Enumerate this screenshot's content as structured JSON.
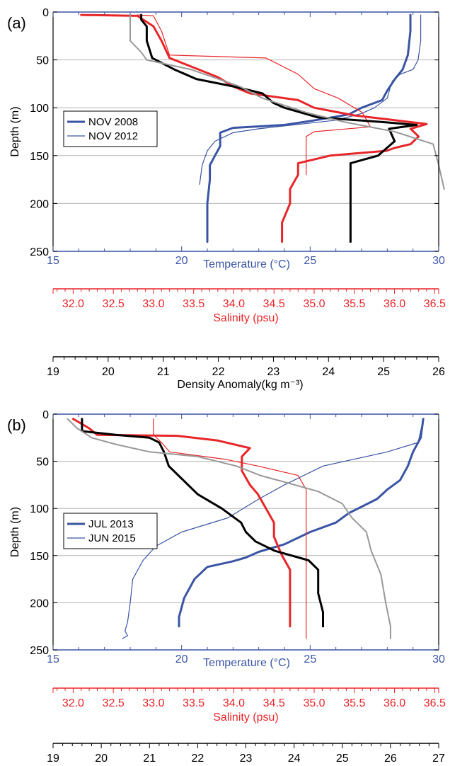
{
  "colors": {
    "temperature": "#3a54a4",
    "salinity": "#e8262a",
    "density": "#000000",
    "density_alt": "#999999",
    "grid": "#b4b4b4"
  },
  "chart_data": [
    {
      "type": "line",
      "panel_label": "(a)",
      "ylabel": "Depth (m)",
      "ylim": [
        250,
        0
      ],
      "yticks": [
        0,
        50,
        100,
        150,
        200,
        250
      ],
      "grid": true,
      "legend_position": "center-left",
      "legend": [
        {
          "label": "NOV 2008",
          "style": "thick"
        },
        {
          "label": "NOV 2012",
          "style": "thin"
        }
      ],
      "axes": {
        "temperature": {
          "label": "Temperature (°C)",
          "range": [
            15,
            30
          ],
          "ticks": [
            15,
            20,
            25,
            30
          ]
        },
        "salinity": {
          "label": "Salinity (psu)",
          "range": [
            31.75,
            36.55
          ],
          "ticks": [
            "32.0",
            "32.5",
            "33.0",
            "33.5",
            "34.0",
            "34.5",
            "35.0",
            "35.5",
            "36.0",
            "36.5"
          ]
        },
        "density": {
          "label": "Density Anomaly(kg m⁻³)",
          "range": [
            19,
            26
          ],
          "ticks": [
            19,
            20,
            21,
            22,
            23,
            24,
            25,
            26
          ]
        }
      },
      "series": [
        {
          "name": "NOV 2008",
          "variable": "temperature",
          "width": 3,
          "points": [
            [
              28.9,
              3
            ],
            [
              28.9,
              20
            ],
            [
              28.8,
              45
            ],
            [
              28.6,
              60
            ],
            [
              28.3,
              70
            ],
            [
              28.0,
              82
            ],
            [
              27.8,
              92
            ],
            [
              27.0,
              100
            ],
            [
              26.5,
              107
            ],
            [
              25.2,
              113
            ],
            [
              24.0,
              118
            ],
            [
              22.0,
              121
            ],
            [
              21.5,
              126
            ],
            [
              21.5,
              140
            ],
            [
              21.3,
              150
            ],
            [
              21.1,
              160
            ],
            [
              21.1,
              175
            ],
            [
              21.0,
              200
            ],
            [
              21.0,
              240
            ]
          ]
        },
        {
          "name": "NOV 2012",
          "variable": "temperature",
          "width": 1.2,
          "points": [
            [
              29.3,
              3
            ],
            [
              29.3,
              30
            ],
            [
              29.2,
              50
            ],
            [
              29.0,
              60
            ],
            [
              28.5,
              65
            ],
            [
              28.2,
              72
            ],
            [
              28.1,
              80
            ],
            [
              28.0,
              90
            ],
            [
              27.5,
              100
            ],
            [
              27.0,
              106
            ],
            [
              26.0,
              113
            ],
            [
              23.0,
              122
            ],
            [
              22.0,
              126
            ],
            [
              21.3,
              135
            ],
            [
              21.0,
              145
            ],
            [
              20.8,
              160
            ],
            [
              20.7,
              180
            ]
          ]
        },
        {
          "name": "NOV 2008",
          "variable": "salinity",
          "width": 3,
          "points": [
            [
              32.1,
              3
            ],
            [
              32.8,
              4
            ],
            [
              33.0,
              15
            ],
            [
              33.1,
              30
            ],
            [
              33.2,
              48
            ],
            [
              33.5,
              58
            ],
            [
              33.8,
              68
            ],
            [
              34.0,
              78
            ],
            [
              34.2,
              85
            ],
            [
              34.8,
              92
            ],
            [
              35.0,
              100
            ],
            [
              35.5,
              108
            ],
            [
              35.9,
              112
            ],
            [
              36.4,
              117
            ],
            [
              36.2,
              122
            ],
            [
              36.3,
              130
            ],
            [
              36.2,
              138
            ],
            [
              36.0,
              142
            ],
            [
              35.9,
              145
            ],
            [
              35.2,
              150
            ],
            [
              34.8,
              158
            ],
            [
              34.8,
              170
            ],
            [
              34.7,
              185
            ],
            [
              34.7,
              200
            ],
            [
              34.6,
              220
            ],
            [
              34.6,
              240
            ]
          ]
        },
        {
          "name": "NOV 2012",
          "variable": "salinity",
          "width": 1.2,
          "points": [
            [
              32.8,
              3
            ],
            [
              33.0,
              4
            ],
            [
              33.1,
              20
            ],
            [
              33.2,
              45
            ],
            [
              34.4,
              48
            ],
            [
              34.8,
              65
            ],
            [
              35.0,
              80
            ],
            [
              35.3,
              90
            ],
            [
              35.6,
              105
            ],
            [
              35.7,
              120
            ],
            [
              35.0,
              125
            ],
            [
              34.9,
              130
            ],
            [
              34.9,
              150
            ],
            [
              34.9,
              170
            ]
          ]
        },
        {
          "name": "NOV 2008",
          "variable": "density",
          "width": 3,
          "points": [
            [
              20.6,
              3
            ],
            [
              20.6,
              8
            ],
            [
              20.7,
              15
            ],
            [
              20.7,
              30
            ],
            [
              20.8,
              48
            ],
            [
              21.2,
              60
            ],
            [
              21.6,
              70
            ],
            [
              22.3,
              78
            ],
            [
              22.8,
              85
            ],
            [
              23.0,
              95
            ],
            [
              23.2,
              100
            ],
            [
              23.8,
              110
            ],
            [
              25.0,
              115
            ],
            [
              25.6,
              118
            ],
            [
              25.1,
              122
            ],
            [
              25.2,
              135
            ],
            [
              25.0,
              145
            ],
            [
              24.9,
              150
            ],
            [
              24.4,
              158
            ],
            [
              24.4,
              170
            ],
            [
              24.4,
              190
            ],
            [
              24.4,
              210
            ],
            [
              24.4,
              240
            ]
          ]
        },
        {
          "name": "NOV 2012",
          "variable": "density",
          "width": 2,
          "points": [
            [
              20.4,
              3
            ],
            [
              20.4,
              15
            ],
            [
              20.4,
              30
            ],
            [
              20.6,
              42
            ],
            [
              20.7,
              50
            ],
            [
              21.5,
              60
            ],
            [
              22.0,
              70
            ],
            [
              22.4,
              78
            ],
            [
              22.8,
              90
            ],
            [
              23.6,
              105
            ],
            [
              24.3,
              115
            ],
            [
              25.2,
              125
            ],
            [
              25.9,
              138
            ],
            [
              26.0,
              160
            ],
            [
              26.1,
              185
            ]
          ]
        }
      ]
    },
    {
      "type": "line",
      "panel_label": "(b)",
      "ylabel": "Depth (m)",
      "ylim": [
        250,
        0
      ],
      "yticks": [
        0,
        50,
        100,
        150,
        200,
        250
      ],
      "grid": true,
      "legend_position": "center-left",
      "legend": [
        {
          "label": "JUL 2013",
          "style": "thick"
        },
        {
          "label": "JUN 2015",
          "style": "thin"
        }
      ],
      "axes": {
        "temperature": {
          "label": "Temperature (°C)",
          "range": [
            15,
            30
          ],
          "ticks": [
            15,
            20,
            25,
            30
          ]
        },
        "salinity": {
          "label": "Salinity (psu)",
          "range": [
            31.75,
            36.55
          ],
          "ticks": [
            "32.0",
            "32.5",
            "33.0",
            "33.5",
            "34.0",
            "34.5",
            "35.0",
            "35.5",
            "36.0",
            "36.5"
          ]
        },
        "density": {
          "label": "Density Anomaly(kg m⁻³)",
          "range": [
            19,
            27
          ],
          "ticks": [
            19,
            20,
            21,
            22,
            23,
            24,
            25,
            26,
            27
          ]
        }
      },
      "series": [
        {
          "name": "JUL 2013",
          "variable": "temperature",
          "width": 3,
          "points": [
            [
              29.4,
              5
            ],
            [
              29.3,
              25
            ],
            [
              29.0,
              40
            ],
            [
              28.8,
              55
            ],
            [
              28.5,
              70
            ],
            [
              28.0,
              80
            ],
            [
              27.6,
              90
            ],
            [
              26.5,
              105
            ],
            [
              26.0,
              115
            ],
            [
              25.0,
              125
            ],
            [
              24.0,
              138
            ],
            [
              23.0,
              146
            ],
            [
              22.5,
              152
            ],
            [
              22.0,
              156
            ],
            [
              21.0,
              162
            ],
            [
              20.5,
              175
            ],
            [
              20.1,
              195
            ],
            [
              19.9,
              215
            ],
            [
              19.9,
              225
            ]
          ]
        },
        {
          "name": "JUN 2015",
          "variable": "temperature",
          "width": 1.2,
          "points": [
            [
              29.4,
              5
            ],
            [
              29.2,
              30
            ],
            [
              28.0,
              40
            ],
            [
              25.5,
              55
            ],
            [
              24.0,
              75
            ],
            [
              23.0,
              90
            ],
            [
              21.8,
              110
            ],
            [
              20.0,
              125
            ],
            [
              19.0,
              140
            ],
            [
              18.5,
              155
            ],
            [
              18.1,
              175
            ],
            [
              18.0,
              200
            ],
            [
              17.9,
              220
            ],
            [
              17.8,
              230
            ],
            [
              17.9,
              235
            ],
            [
              17.7,
              238
            ]
          ]
        },
        {
          "name": "JUL 2013",
          "variable": "salinity",
          "width": 3,
          "points": [
            [
              32.0,
              5
            ],
            [
              32.2,
              15
            ],
            [
              32.3,
              22
            ],
            [
              33.3,
              23
            ],
            [
              33.8,
              28
            ],
            [
              34.2,
              36
            ],
            [
              34.1,
              45
            ],
            [
              34.1,
              60
            ],
            [
              34.2,
              75
            ],
            [
              34.3,
              85
            ],
            [
              34.4,
              100
            ],
            [
              34.5,
              115
            ],
            [
              34.5,
              130
            ],
            [
              34.6,
              150
            ],
            [
              34.7,
              165
            ],
            [
              34.7,
              190
            ],
            [
              34.7,
              215
            ],
            [
              34.7,
              225
            ]
          ]
        },
        {
          "name": "JUN 2015",
          "variable": "salinity",
          "width": 1.2,
          "points": [
            [
              33.0,
              5
            ],
            [
              33.0,
              22
            ],
            [
              33.1,
              30
            ],
            [
              33.2,
              40
            ],
            [
              33.9,
              48
            ],
            [
              34.3,
              55
            ],
            [
              34.8,
              65
            ],
            [
              34.9,
              80
            ],
            [
              34.9,
              100
            ],
            [
              34.9,
              130
            ],
            [
              34.9,
              170
            ],
            [
              34.9,
              210
            ],
            [
              34.9,
              238
            ]
          ]
        },
        {
          "name": "JUL 2013",
          "variable": "density",
          "width": 3,
          "points": [
            [
              19.6,
              5
            ],
            [
              19.6,
              18
            ],
            [
              20.3,
              22
            ],
            [
              21.0,
              25
            ],
            [
              21.2,
              30
            ],
            [
              21.3,
              40
            ],
            [
              21.4,
              55
            ],
            [
              21.7,
              70
            ],
            [
              22.0,
              85
            ],
            [
              22.5,
              100
            ],
            [
              22.9,
              115
            ],
            [
              23.0,
              125
            ],
            [
              23.2,
              135
            ],
            [
              23.6,
              145
            ],
            [
              24.3,
              155
            ],
            [
              24.5,
              165
            ],
            [
              24.5,
              190
            ],
            [
              24.6,
              210
            ],
            [
              24.6,
              225
            ]
          ]
        },
        {
          "name": "JUN 2015",
          "variable": "density",
          "width": 2,
          "points": [
            [
              19.3,
              5
            ],
            [
              19.5,
              15
            ],
            [
              19.8,
              25
            ],
            [
              20.3,
              32
            ],
            [
              21.0,
              40
            ],
            [
              22.0,
              45
            ],
            [
              22.8,
              55
            ],
            [
              23.3,
              65
            ],
            [
              23.8,
              72
            ],
            [
              24.5,
              82
            ],
            [
              25.0,
              95
            ],
            [
              25.2,
              110
            ],
            [
              25.5,
              125
            ],
            [
              25.6,
              145
            ],
            [
              25.8,
              170
            ],
            [
              25.9,
              200
            ],
            [
              26.0,
              225
            ],
            [
              26.0,
              238
            ]
          ]
        }
      ]
    }
  ]
}
